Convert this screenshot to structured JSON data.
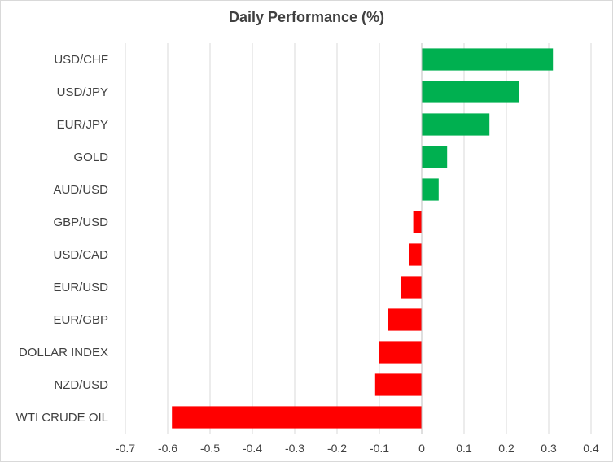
{
  "chart_data": {
    "type": "bar",
    "orientation": "horizontal",
    "title": "Daily Performance (%)",
    "xlabel": "",
    "ylabel": "",
    "categories": [
      "USD/CHF",
      "USD/JPY",
      "EUR/JPY",
      "GOLD",
      "AUD/USD",
      "GBP/USD",
      "USD/CAD",
      "EUR/USD",
      "EUR/GBP",
      "DOLLAR INDEX",
      "NZD/USD",
      "WTI CRUDE OIL"
    ],
    "values": [
      0.31,
      0.23,
      0.16,
      0.06,
      0.04,
      -0.02,
      -0.03,
      -0.05,
      -0.08,
      -0.1,
      -0.11,
      -0.59
    ],
    "xlim": [
      -0.7,
      0.4
    ],
    "xticks": [
      -0.7,
      -0.6,
      -0.5,
      -0.4,
      -0.3,
      -0.2,
      -0.1,
      0,
      0.1,
      0.2,
      0.3,
      0.4
    ],
    "xtick_labels": [
      "-0.7",
      "-0.6",
      "-0.5",
      "-0.4",
      "-0.3",
      "-0.2",
      "-0.1",
      "0",
      "0.1",
      "0.2",
      "0.3",
      "0.4"
    ],
    "grid": "vertical",
    "legend": "none",
    "colors": {
      "positive": "#00b050",
      "negative": "#ff0000",
      "grid": "#d9d9d9",
      "text": "#404040"
    }
  }
}
